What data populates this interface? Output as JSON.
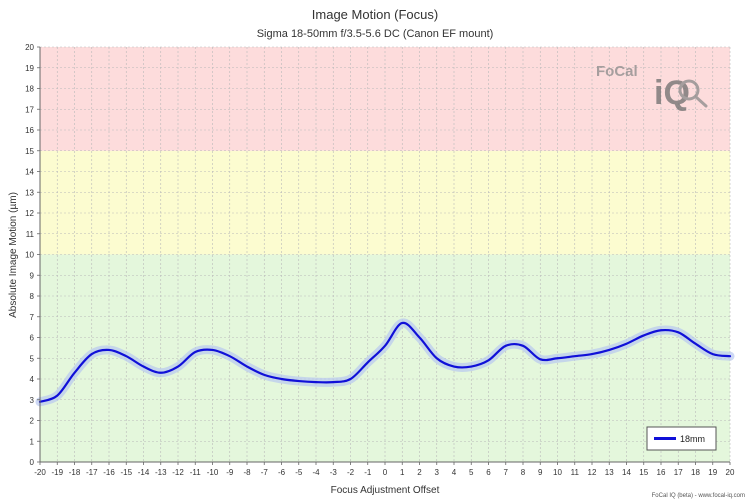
{
  "chart_data": {
    "type": "line",
    "title": "Image Motion (Focus)",
    "subtitle": "Sigma 18-50mm f/3.5-5.6 DC (Canon EF mount)",
    "xlabel": "Focus Adjustment Offset",
    "ylabel": "Absolute Image Motion (µm)",
    "xlim": [
      -20,
      20
    ],
    "ylim": [
      0,
      20
    ],
    "grid": true,
    "legend_position": "bottom-right",
    "bands": [
      {
        "from": 0,
        "to": 10,
        "color": "#e4f7dc"
      },
      {
        "from": 10,
        "to": 15,
        "color": "#fcfcd0"
      },
      {
        "from": 15,
        "to": 20,
        "color": "#fddcdc"
      }
    ],
    "x_ticks": [
      "-20",
      "-19",
      "-18",
      "-17",
      "-16",
      "-15",
      "-14",
      "-13",
      "-12",
      "-11",
      "-10",
      "-9",
      "-8",
      "-7",
      "-6",
      "-5",
      "-4",
      "-3",
      "-2",
      "-1",
      "0",
      "1",
      "2",
      "3",
      "4",
      "5",
      "6",
      "7",
      "8",
      "9",
      "10",
      "11",
      "12",
      "13",
      "14",
      "15",
      "16",
      "17",
      "18",
      "19",
      "20"
    ],
    "y_ticks": [
      "0",
      "1",
      "2",
      "3",
      "4",
      "5",
      "6",
      "7",
      "8",
      "9",
      "10",
      "11",
      "12",
      "13",
      "14",
      "15",
      "16",
      "17",
      "18",
      "19",
      "20"
    ],
    "series": [
      {
        "name": "18mm",
        "color": "#1010d8",
        "band_color": "#b8c8f0",
        "x": [
          -20,
          -19,
          -18,
          -17,
          -16,
          -15,
          -14,
          -13,
          -12,
          -11,
          -10,
          -9,
          -8,
          -7,
          -6,
          -5,
          -4,
          -3,
          -2,
          -1,
          0,
          1,
          2,
          3,
          4,
          5,
          6,
          7,
          8,
          9,
          10,
          11,
          12,
          13,
          14,
          15,
          16,
          17,
          18,
          19,
          20
        ],
        "y": [
          2.9,
          3.2,
          4.3,
          5.2,
          5.4,
          5.1,
          4.6,
          4.3,
          4.6,
          5.3,
          5.4,
          5.1,
          4.6,
          4.2,
          4.0,
          3.9,
          3.85,
          3.85,
          4.0,
          4.8,
          5.6,
          6.7,
          6.0,
          5.0,
          4.6,
          4.6,
          4.9,
          5.6,
          5.6,
          4.95,
          5.0,
          5.1,
          5.2,
          5.4,
          5.7,
          6.1,
          6.35,
          6.25,
          5.7,
          5.2,
          5.1
        ]
      }
    ]
  },
  "logo": {
    "word": "FoCal",
    "iq": "iQ"
  },
  "footer": "FoCal IQ (beta) - www.focal-iq.com"
}
